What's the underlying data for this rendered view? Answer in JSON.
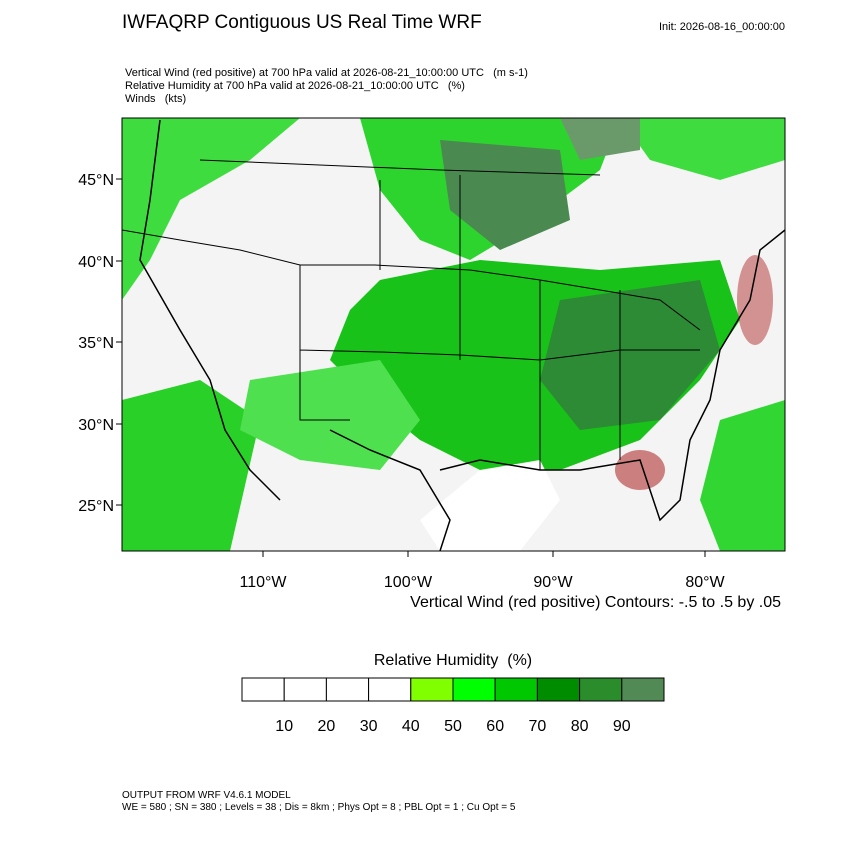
{
  "header": {
    "title": "IWFAQRP Contiguous US Real Time WRF",
    "init": "Init: 2026-08-16_00:00:00",
    "fields": [
      "Vertical Wind (red positive) at 700 hPa valid at 2026-08-21_10:00:00 UTC   (m s-1)",
      "Relative Humidity at 700 hPa valid at 2026-08-21_10:00:00 UTC   (%)",
      "Winds   (kts)"
    ]
  },
  "map": {
    "lat_labels": [
      "45°N",
      "40°N",
      "35°N",
      "30°N",
      "25°N"
    ],
    "lon_labels": [
      "110°W",
      "100°W",
      "90°W",
      "80°W"
    ],
    "contour_note": "Vertical Wind (red positive) Contours: -.5 to .5 by .05"
  },
  "colorbar": {
    "title": "Relative Humidity  (%)",
    "labels": [
      "10",
      "20",
      "30",
      "40",
      "50",
      "60",
      "70",
      "80",
      "90"
    ],
    "colors": [
      "#ffffff",
      "#ffffff",
      "#ffffff",
      "#ffffff",
      "#80ff00",
      "#00ff00",
      "#00c800",
      "#008c00",
      "#2a8c2a",
      "#528a55"
    ]
  },
  "footer": {
    "lines": [
      "OUTPUT FROM WRF V4.6.1 MODEL",
      "WE = 580 ; SN = 380 ; Levels = 38 ; Dis = 8km ; Phys Opt = 8 ; PBL Opt = 1 ; Cu Opt = 5"
    ]
  }
}
